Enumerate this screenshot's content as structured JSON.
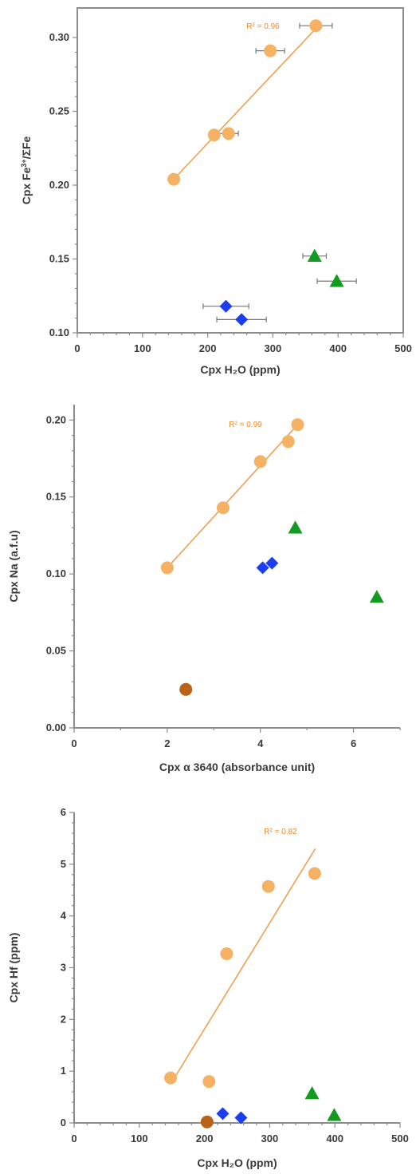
{
  "colors": {
    "circle": "#f5b265",
    "diamond": "#1a3ef0",
    "triangle": "#139a20",
    "brown": "#b8621a",
    "fit": "#f0a050",
    "r2": "#f08a24"
  },
  "chart_data": [
    {
      "type": "scatter",
      "title": "",
      "xlabel": "Cpx H₂O (ppm)",
      "ylabel_parts": [
        "Cpx Fe",
        "3+",
        "/ΣFe"
      ],
      "xlim": [
        0,
        500
      ],
      "ylim": [
        0.1,
        0.32
      ],
      "xticks": [
        0,
        100,
        200,
        300,
        400,
        500
      ],
      "xtick_labels": [
        "0",
        "100",
        "200",
        "300",
        "400",
        "500"
      ],
      "yticks": [
        0.1,
        0.15,
        0.2,
        0.25,
        0.3
      ],
      "ytick_labels": [
        "0.10",
        "0.15",
        "0.20",
        "0.25",
        "0.30"
      ],
      "grid": false,
      "r2_label": "R² = 0.96",
      "fit": [
        [
          150,
          0.205
        ],
        [
          370,
          0.308
        ]
      ],
      "series": [
        {
          "marker": "circle",
          "points": [
            {
              "x": 148,
              "y": 0.204
            },
            {
              "x": 210,
              "y": 0.234
            },
            {
              "x": 232,
              "y": 0.235,
              "xerr": 15
            },
            {
              "x": 296,
              "y": 0.291,
              "xerr": 22
            },
            {
              "x": 366,
              "y": 0.308,
              "xerr": 25
            }
          ]
        },
        {
          "marker": "diamond",
          "points": [
            {
              "x": 228,
              "y": 0.118,
              "xerr": 35
            },
            {
              "x": 252,
              "y": 0.109,
              "xerr": 38
            }
          ]
        },
        {
          "marker": "triangle",
          "points": [
            {
              "x": 364,
              "y": 0.152,
              "xerr": 18
            },
            {
              "x": 398,
              "y": 0.135,
              "xerr": 30
            }
          ]
        }
      ]
    },
    {
      "type": "scatter",
      "title": "",
      "xlabel": "Cpx α 3640 (absorbance unit)",
      "ylabel_parts": [
        "Cpx Na (a.f.u)"
      ],
      "xlim": [
        0,
        7
      ],
      "ylim": [
        0,
        0.21
      ],
      "xticks": [
        0,
        2,
        4,
        6
      ],
      "xtick_labels": [
        "0",
        "2",
        "4",
        "6"
      ],
      "yticks": [
        0,
        0.05,
        0.1,
        0.15,
        0.2
      ],
      "ytick_labels": [
        "0.00",
        "0.05",
        "0.10",
        "0.15",
        "0.20"
      ],
      "grid": false,
      "r2_label": "R² = 0.99",
      "fit": [
        [
          2.0,
          0.104
        ],
        [
          4.8,
          0.197
        ]
      ],
      "series": [
        {
          "marker": "circle",
          "points": [
            {
              "x": 2.0,
              "y": 0.104
            },
            {
              "x": 3.2,
              "y": 0.143
            },
            {
              "x": 4.0,
              "y": 0.173
            },
            {
              "x": 4.6,
              "y": 0.186
            },
            {
              "x": 4.8,
              "y": 0.197
            }
          ]
        },
        {
          "marker": "diamond",
          "points": [
            {
              "x": 4.05,
              "y": 0.104
            },
            {
              "x": 4.25,
              "y": 0.107
            }
          ]
        },
        {
          "marker": "triangle",
          "points": [
            {
              "x": 4.75,
              "y": 0.13
            },
            {
              "x": 6.5,
              "y": 0.085
            }
          ]
        },
        {
          "marker": "brown",
          "points": [
            {
              "x": 2.4,
              "y": 0.025
            }
          ]
        }
      ]
    },
    {
      "type": "scatter",
      "title": "",
      "xlabel": "Cpx H₂O (ppm)",
      "ylabel_parts": [
        "Cpx Hf (ppm)"
      ],
      "xlim": [
        0,
        500
      ],
      "ylim": [
        0,
        6
      ],
      "xticks": [
        0,
        100,
        200,
        300,
        400,
        500
      ],
      "xtick_labels": [
        "0",
        "100",
        "200",
        "300",
        "400",
        "500"
      ],
      "yticks": [
        0,
        1,
        2,
        3,
        4,
        5,
        6
      ],
      "ytick_labels": [
        "0",
        "1",
        "2",
        "3",
        "4",
        "5",
        "6"
      ],
      "grid": false,
      "r2_label": "R² = 0.82",
      "fit": [
        [
          148,
          0.75
        ],
        [
          370,
          5.3
        ]
      ],
      "series": [
        {
          "marker": "circle",
          "points": [
            {
              "x": 148,
              "y": 0.87
            },
            {
              "x": 207,
              "y": 0.8
            },
            {
              "x": 234,
              "y": 3.27
            },
            {
              "x": 298,
              "y": 4.57
            },
            {
              "x": 369,
              "y": 4.82
            }
          ]
        },
        {
          "marker": "diamond",
          "points": [
            {
              "x": 228,
              "y": 0.18
            },
            {
              "x": 256,
              "y": 0.1
            }
          ]
        },
        {
          "marker": "triangle",
          "points": [
            {
              "x": 365,
              "y": 0.57
            },
            {
              "x": 399,
              "y": 0.15
            }
          ]
        },
        {
          "marker": "brown",
          "points": [
            {
              "x": 204,
              "y": 0.02
            }
          ]
        }
      ]
    }
  ]
}
